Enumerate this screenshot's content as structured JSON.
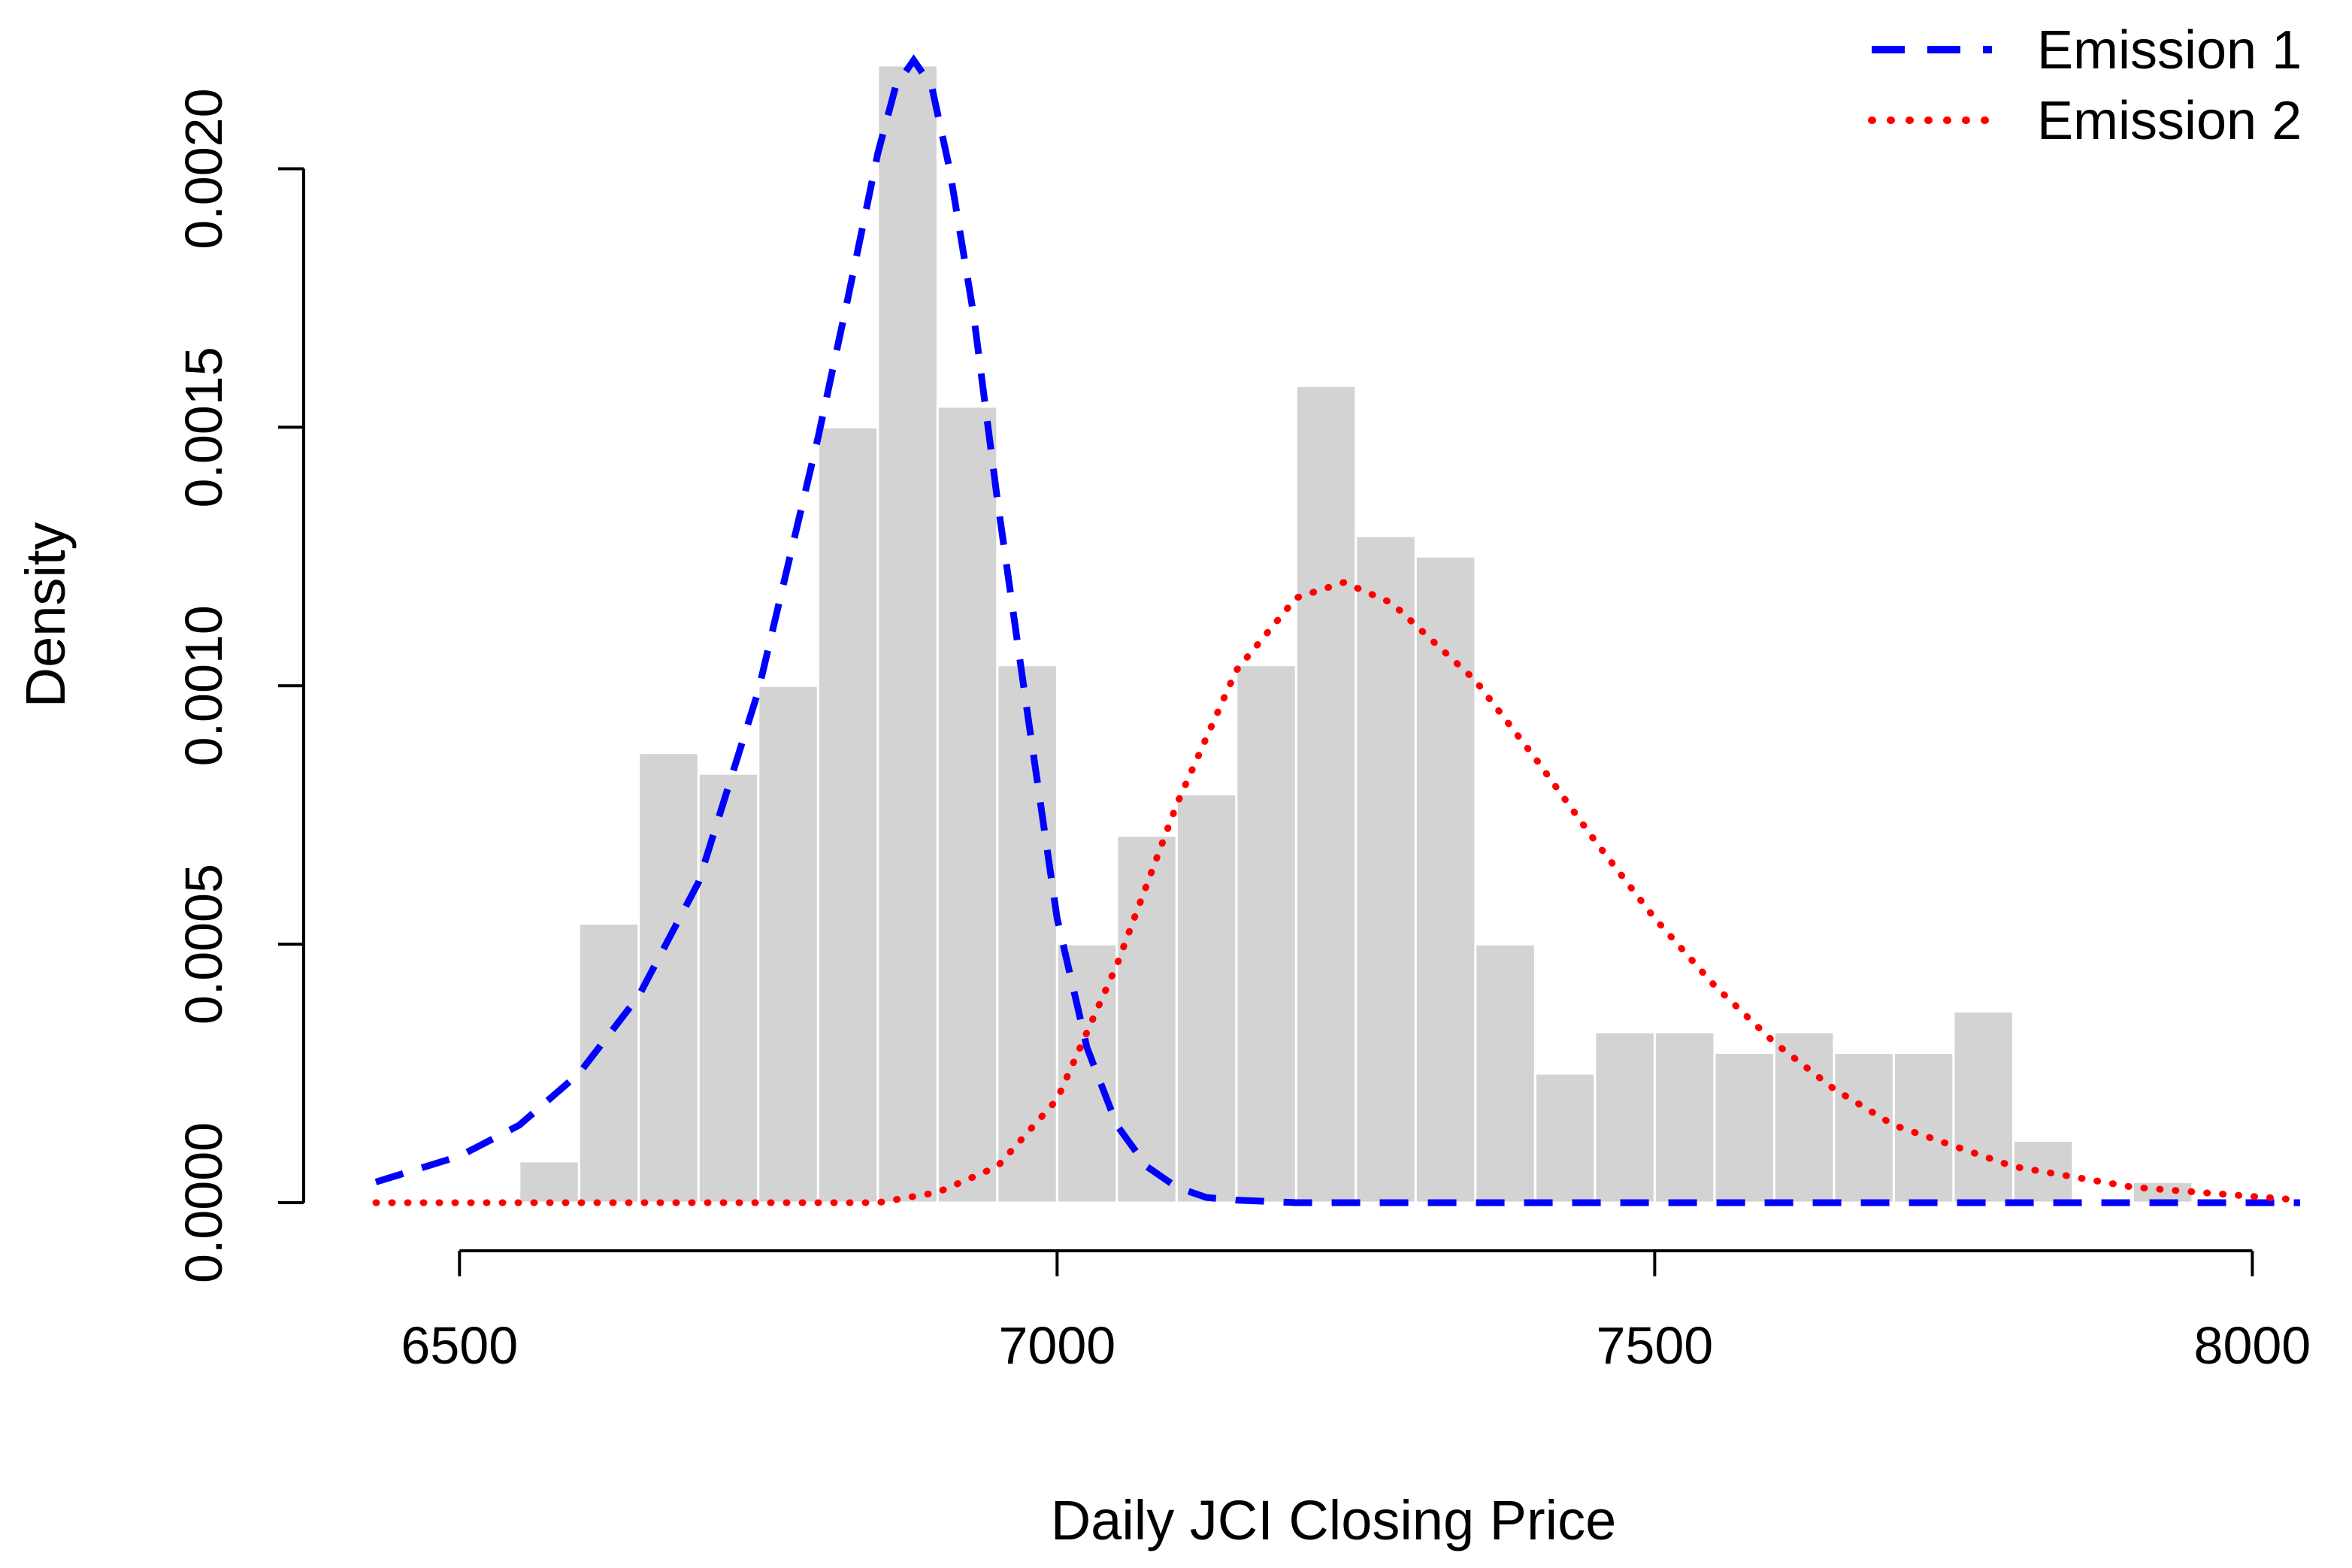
{
  "chart_data": {
    "type": "bar",
    "xlabel": "Daily JCI Closing Price",
    "ylabel": "Density",
    "xlim": [
      6430,
      8040
    ],
    "ylim": [
      0,
      0.0022
    ],
    "x_ticks": [
      6500,
      7000,
      7500,
      8000
    ],
    "x_tick_labels": [
      "6500",
      "7000",
      "7500",
      "8000"
    ],
    "y_ticks": [
      0,
      0.0005,
      0.001,
      0.0015,
      0.002
    ],
    "y_tick_labels": [
      "0.0000",
      "0.0005",
      "0.0010",
      "0.0015",
      "0.0020"
    ],
    "histogram": {
      "bin_width": 50,
      "color": "#d3d3d3",
      "bins": [
        {
          "start": 6550,
          "end": 6600,
          "density": 8e-05
        },
        {
          "start": 6600,
          "end": 6650,
          "density": 0.00054
        },
        {
          "start": 6650,
          "end": 6700,
          "density": 0.00087
        },
        {
          "start": 6700,
          "end": 6750,
          "density": 0.00083
        },
        {
          "start": 6750,
          "end": 6800,
          "density": 0.001
        },
        {
          "start": 6800,
          "end": 6850,
          "density": 0.0015
        },
        {
          "start": 6850,
          "end": 6900,
          "density": 0.0022
        },
        {
          "start": 6900,
          "end": 6950,
          "density": 0.00154
        },
        {
          "start": 6950,
          "end": 7000,
          "density": 0.00104
        },
        {
          "start": 7000,
          "end": 7050,
          "density": 0.0005
        },
        {
          "start": 7050,
          "end": 7100,
          "density": 0.00071
        },
        {
          "start": 7100,
          "end": 7150,
          "density": 0.00079
        },
        {
          "start": 7150,
          "end": 7200,
          "density": 0.00104
        },
        {
          "start": 7200,
          "end": 7250,
          "density": 0.00158
        },
        {
          "start": 7250,
          "end": 7300,
          "density": 0.00129
        },
        {
          "start": 7300,
          "end": 7350,
          "density": 0.00125
        },
        {
          "start": 7350,
          "end": 7400,
          "density": 0.0005
        },
        {
          "start": 7400,
          "end": 7450,
          "density": 0.00025
        },
        {
          "start": 7450,
          "end": 7500,
          "density": 0.00033
        },
        {
          "start": 7500,
          "end": 7550,
          "density": 0.00033
        },
        {
          "start": 7550,
          "end": 7600,
          "density": 0.00029
        },
        {
          "start": 7600,
          "end": 7650,
          "density": 0.00033
        },
        {
          "start": 7650,
          "end": 7700,
          "density": 0.00029
        },
        {
          "start": 7700,
          "end": 7750,
          "density": 0.00029
        },
        {
          "start": 7750,
          "end": 7800,
          "density": 0.00037
        },
        {
          "start": 7800,
          "end": 7850,
          "density": 0.00012
        },
        {
          "start": 7850,
          "end": 7900,
          "density": 0.0
        },
        {
          "start": 7900,
          "end": 7950,
          "density": 4e-05
        }
      ]
    },
    "series": [
      {
        "name": "Emission 1",
        "color": "#0000ff",
        "style": "dashed",
        "x": [
          6430,
          6500,
          6550,
          6600,
          6650,
          6700,
          6750,
          6800,
          6825,
          6850,
          6865,
          6880,
          6895,
          6910,
          6930,
          6950,
          6975,
          7000,
          7025,
          7050,
          7075,
          7100,
          7125,
          7150,
          7200,
          7300,
          7500,
          7800,
          8040
        ],
        "y": [
          4e-05,
          9e-05,
          0.00015,
          0.00025,
          0.0004,
          0.00062,
          0.00099,
          0.00148,
          0.00175,
          0.00203,
          0.00216,
          0.00221,
          0.00216,
          0.002,
          0.00172,
          0.00136,
          0.00095,
          0.00055,
          0.0003,
          0.00015,
          7e-05,
          3e-05,
          1e-05,
          5e-06,
          0.0,
          0.0,
          0.0,
          0.0,
          0.0
        ]
      },
      {
        "name": "Emission 2",
        "color": "#ff0000",
        "style": "dotted",
        "x": [
          6430,
          6700,
          6850,
          6900,
          6950,
          7000,
          7050,
          7100,
          7150,
          7200,
          7240,
          7280,
          7350,
          7400,
          7450,
          7500,
          7550,
          7600,
          7650,
          7700,
          7800,
          7900,
          8040
        ],
        "y": [
          0.0,
          0.0,
          0.0,
          2e-05,
          7e-05,
          0.0002,
          0.00046,
          0.00077,
          0.00103,
          0.00117,
          0.0012,
          0.00116,
          0.00101,
          0.00086,
          0.0007,
          0.00055,
          0.00042,
          0.00031,
          0.00022,
          0.00015,
          7e-05,
          3e-05,
          5e-06
        ]
      }
    ],
    "legend": {
      "position": "top-right",
      "entries": [
        "Emission 1",
        "Emission 2"
      ]
    }
  }
}
